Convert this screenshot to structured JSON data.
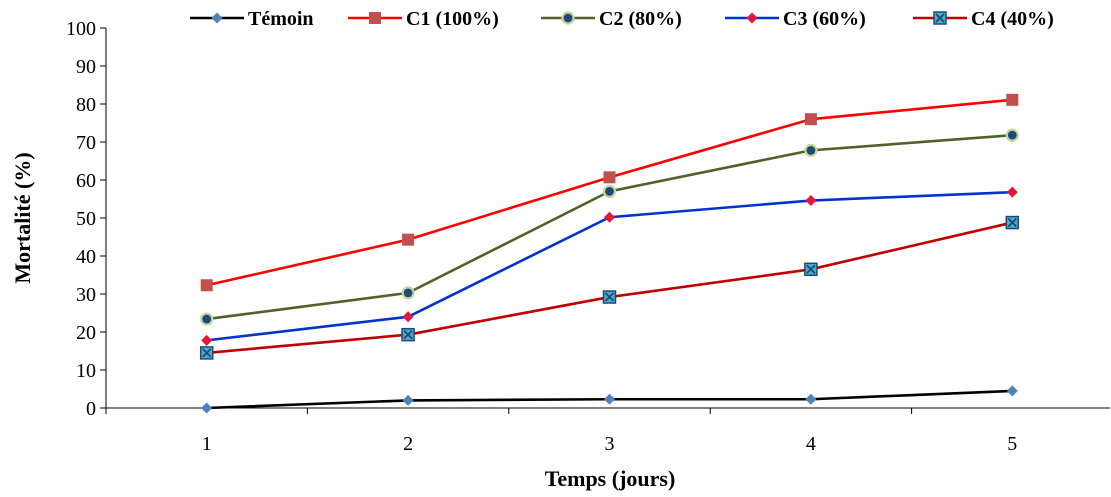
{
  "chart_data": {
    "type": "line",
    "xlabel": "Temps (jours)",
    "ylabel": "Mortalité (%)",
    "x": [
      "1",
      "2",
      "3",
      "4",
      "5"
    ],
    "ylim": [
      0,
      100
    ],
    "yticks": [
      "0",
      "10",
      "20",
      "30",
      "40",
      "50",
      "60",
      "70",
      "80",
      "90",
      "100"
    ],
    "grid": false,
    "legend_position": "top",
    "series": [
      {
        "name": "Témoin",
        "color": "#000000",
        "marker": "diamond",
        "marker_color": "#4f81bd",
        "values": [
          0,
          2,
          2.3,
          2.3,
          4.5
        ]
      },
      {
        "name": "C1 (100%)",
        "color": "#ff0000",
        "marker": "square",
        "marker_color": "#c0504d",
        "values": [
          32.3,
          44.3,
          60.7,
          76,
          81.1
        ]
      },
      {
        "name": "C2 (80%)",
        "color": "#4f6228",
        "marker": "circle",
        "marker_color": "#1f497d",
        "values": [
          23.4,
          30.3,
          57,
          67.8,
          71.8
        ]
      },
      {
        "name": "C3 (60%)",
        "color": "#0033cc",
        "marker": "diamond",
        "marker_color": "#e3173a",
        "values": [
          17.8,
          24,
          50.2,
          54.6,
          56.8
        ]
      },
      {
        "name": "C4 (40%)",
        "color": "#c00000",
        "marker": "xsquare",
        "marker_color": "#4bacc6",
        "values": [
          14.5,
          19.3,
          29.2,
          36.5,
          48.8
        ]
      }
    ]
  }
}
